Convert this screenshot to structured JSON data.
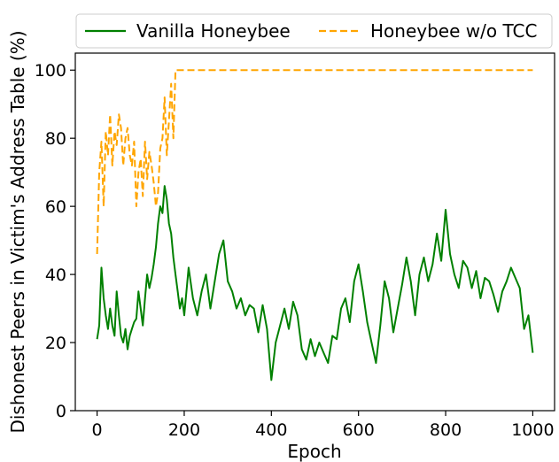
{
  "chart_data": {
    "type": "line",
    "title": "",
    "xlabel": "Epoch",
    "ylabel": "Dishonest Peers in Victim's Address Table (%)",
    "xlim": [
      -50,
      1050
    ],
    "ylim": [
      0,
      105
    ],
    "xticks": [
      0,
      200,
      400,
      600,
      800,
      1000
    ],
    "yticks": [
      0,
      20,
      40,
      60,
      80,
      100
    ],
    "grid": false,
    "legend_position": "top, above plot",
    "series": [
      {
        "name": "Vanilla Honeybee",
        "color": "#008000",
        "style": "solid",
        "x": [
          0,
          5,
          10,
          15,
          20,
          25,
          30,
          35,
          40,
          45,
          50,
          55,
          60,
          65,
          70,
          75,
          80,
          85,
          90,
          95,
          100,
          105,
          110,
          115,
          120,
          125,
          130,
          135,
          140,
          145,
          150,
          155,
          160,
          165,
          170,
          175,
          180,
          185,
          190,
          195,
          200,
          210,
          220,
          230,
          240,
          250,
          260,
          270,
          280,
          290,
          300,
          310,
          320,
          330,
          340,
          350,
          360,
          370,
          380,
          390,
          400,
          410,
          420,
          430,
          440,
          450,
          460,
          470,
          480,
          490,
          500,
          510,
          520,
          530,
          540,
          550,
          560,
          570,
          580,
          590,
          600,
          610,
          620,
          630,
          640,
          650,
          660,
          670,
          680,
          690,
          700,
          710,
          720,
          730,
          740,
          750,
          760,
          770,
          780,
          790,
          800,
          810,
          820,
          830,
          840,
          850,
          860,
          870,
          880,
          890,
          900,
          910,
          920,
          930,
          940,
          950,
          960,
          970,
          980,
          990,
          1000
        ],
        "y": [
          21,
          25,
          42,
          33,
          28,
          24,
          30,
          25,
          22,
          35,
          28,
          22,
          20,
          24,
          18,
          22,
          24,
          26,
          27,
          35,
          30,
          25,
          33,
          40,
          36,
          39,
          43,
          48,
          55,
          60,
          58,
          66,
          62,
          55,
          52,
          45,
          40,
          35,
          30,
          33,
          28,
          42,
          33,
          28,
          35,
          40,
          30,
          38,
          46,
          50,
          38,
          35,
          30,
          33,
          28,
          31,
          30,
          23,
          31,
          24,
          9,
          20,
          25,
          30,
          24,
          32,
          28,
          18,
          15,
          21,
          16,
          20,
          17,
          14,
          22,
          21,
          30,
          33,
          26,
          38,
          43,
          35,
          26,
          20,
          14,
          25,
          38,
          33,
          23,
          30,
          37,
          45,
          38,
          28,
          40,
          45,
          38,
          43,
          52,
          44,
          59,
          46,
          40,
          36,
          44,
          42,
          36,
          41,
          33,
          39,
          38,
          34,
          29,
          35,
          38,
          42,
          39,
          36,
          24,
          28,
          17
        ],
        "values_note": null
      },
      {
        "name": "Honeybee w/o TCC",
        "color": "#ffa500",
        "style": "dashed",
        "x": [
          0,
          5,
          10,
          15,
          20,
          25,
          30,
          35,
          40,
          45,
          50,
          55,
          60,
          65,
          70,
          75,
          80,
          85,
          90,
          95,
          100,
          105,
          110,
          115,
          120,
          125,
          130,
          135,
          140,
          145,
          150,
          155,
          160,
          165,
          170,
          175,
          180,
          200,
          300,
          400,
          500,
          600,
          700,
          800,
          900,
          1000
        ],
        "y": [
          46,
          70,
          79,
          60,
          82,
          75,
          87,
          72,
          82,
          78,
          87,
          83,
          72,
          80,
          83,
          75,
          72,
          79,
          60,
          70,
          74,
          63,
          79,
          68,
          76,
          72,
          67,
          60,
          64,
          77,
          80,
          92,
          75,
          85,
          96,
          80,
          100,
          100,
          100,
          100,
          100,
          100,
          100,
          100,
          100,
          100
        ]
      }
    ]
  }
}
